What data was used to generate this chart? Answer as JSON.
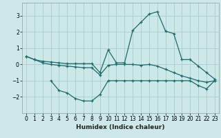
{
  "xlabel": "Humidex (Indice chaleur)",
  "bg_color": "#cce8e8",
  "grid_color": "#aacccc",
  "line_color": "#1a6b6b",
  "line1_x": [
    0,
    1,
    2,
    3,
    4,
    5,
    6,
    7,
    8,
    9,
    10,
    11,
    12,
    13,
    14,
    15,
    16,
    17,
    18,
    19,
    20,
    21,
    22,
    23
  ],
  "line1_y": [
    0.5,
    0.3,
    0.2,
    0.15,
    0.1,
    0.05,
    0.05,
    0.05,
    0.05,
    -0.5,
    0.9,
    0.1,
    0.1,
    2.1,
    2.6,
    3.1,
    3.25,
    2.05,
    1.9,
    0.3,
    0.3,
    -0.1,
    -0.5,
    -0.9
  ],
  "line2_x": [
    0,
    1,
    2,
    3,
    4,
    5,
    6,
    7,
    8,
    9,
    10,
    11,
    12,
    13,
    14,
    15,
    16,
    17,
    18,
    19,
    20,
    21,
    22,
    23
  ],
  "line2_y": [
    0.5,
    0.3,
    0.1,
    0.0,
    -0.05,
    -0.1,
    -0.15,
    -0.2,
    -0.2,
    -0.65,
    -0.05,
    0.0,
    0.0,
    0.0,
    -0.05,
    0.0,
    -0.1,
    -0.3,
    -0.5,
    -0.7,
    -0.85,
    -1.0,
    -1.1,
    -1.0
  ],
  "line3_x": [
    3,
    4,
    5,
    6,
    7,
    8,
    9,
    10,
    11,
    12,
    13,
    14,
    15,
    16,
    17,
    18,
    19,
    20,
    21,
    22,
    23
  ],
  "line3_y": [
    -1.0,
    -1.6,
    -1.75,
    -2.1,
    -2.25,
    -2.25,
    -1.85,
    -1.0,
    -1.0,
    -1.0,
    -1.0,
    -1.0,
    -1.0,
    -1.0,
    -1.0,
    -1.0,
    -1.0,
    -1.0,
    -1.3,
    -1.5,
    -1.0
  ],
  "xlim": [
    -0.5,
    23.5
  ],
  "ylim": [
    -3.0,
    3.8
  ],
  "yticks": [
    -2,
    -1,
    0,
    1,
    2,
    3
  ],
  "xticks": [
    0,
    1,
    2,
    3,
    4,
    5,
    6,
    7,
    8,
    9,
    10,
    11,
    12,
    13,
    14,
    15,
    16,
    17,
    18,
    19,
    20,
    21,
    22,
    23
  ],
  "xlabel_fontsize": 6.5,
  "tick_fontsize": 5.5
}
